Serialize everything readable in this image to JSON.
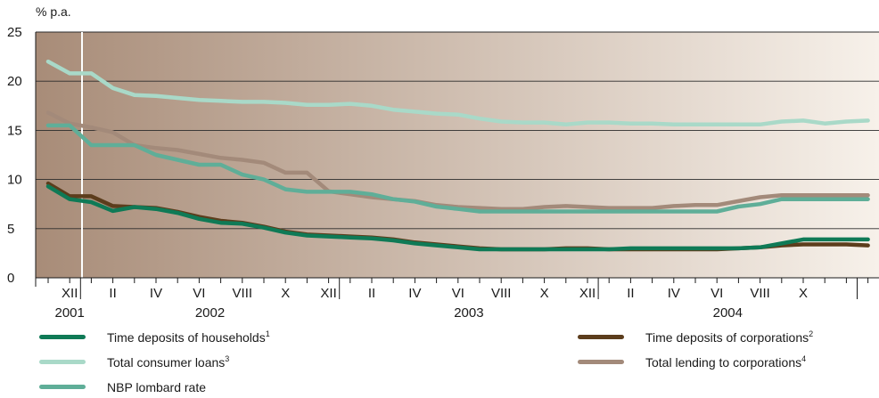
{
  "chart_data": {
    "type": "line",
    "unit_label": "% p.a.",
    "ylim": [
      0,
      25
    ],
    "y_ticks": [
      "0",
      "5",
      "10",
      "15",
      "20",
      "25"
    ],
    "x_month_labels": [
      "XII",
      "II",
      "IV",
      "VI",
      "VIII",
      "X",
      "XII",
      "II",
      "IV",
      "VI",
      "VIII",
      "X",
      "XII",
      "II",
      "IV",
      "VI",
      "VIII",
      "X"
    ],
    "x_year_labels": [
      "2001",
      "2002",
      "2003",
      "2004"
    ],
    "x_range": [
      "2001-11",
      "2004-11"
    ],
    "grid": true,
    "background": {
      "from": "#a88c78",
      "to": "#f7f1ea"
    },
    "series": [
      {
        "name": "Total consumer loans",
        "note": "3",
        "color": "#a9d9c8",
        "values": [
          22.0,
          20.8,
          20.8,
          19.3,
          18.6,
          18.5,
          18.3,
          18.1,
          18.0,
          17.9,
          17.9,
          17.8,
          17.6,
          17.6,
          17.7,
          17.5,
          17.1,
          16.9,
          16.7,
          16.6,
          16.2,
          15.9,
          15.8,
          15.8,
          15.6,
          15.8,
          15.8,
          15.7,
          15.7,
          15.6,
          15.6,
          15.6,
          15.6,
          15.6,
          15.9,
          16.0,
          15.7,
          15.9,
          16.0
        ]
      },
      {
        "name": "Total lending to corporations",
        "note": "4",
        "color": "#a38a7a",
        "values": [
          16.8,
          15.7,
          15.3,
          14.8,
          13.5,
          13.2,
          13.0,
          12.6,
          12.2,
          12.0,
          11.7,
          10.7,
          10.7,
          8.8,
          8.5,
          8.2,
          8.0,
          7.8,
          7.4,
          7.2,
          7.1,
          7.0,
          7.0,
          7.2,
          7.3,
          7.2,
          7.1,
          7.1,
          7.1,
          7.3,
          7.4,
          7.4,
          7.8,
          8.2,
          8.4,
          8.4,
          8.4,
          8.4,
          8.4
        ]
      },
      {
        "name": "NBP lombard rate",
        "note": "",
        "color": "#5fae98",
        "values": [
          15.5,
          15.5,
          13.5,
          13.5,
          13.5,
          12.5,
          12.0,
          11.5,
          11.5,
          10.5,
          10.0,
          9.0,
          8.75,
          8.75,
          8.75,
          8.5,
          8.0,
          7.75,
          7.25,
          7.0,
          6.75,
          6.75,
          6.75,
          6.75,
          6.75,
          6.75,
          6.75,
          6.75,
          6.75,
          6.75,
          6.75,
          6.75,
          7.25,
          7.5,
          8.0,
          8.0,
          8.0,
          8.0,
          8.0
        ]
      },
      {
        "name": "Time deposits of corporations",
        "note": "2",
        "color": "#5c3d1c",
        "values": [
          9.6,
          8.3,
          8.3,
          7.3,
          7.2,
          7.1,
          6.7,
          6.2,
          5.8,
          5.6,
          5.2,
          4.7,
          4.4,
          4.3,
          4.2,
          4.1,
          3.9,
          3.6,
          3.4,
          3.2,
          3.0,
          2.9,
          2.9,
          2.9,
          3.0,
          3.0,
          2.9,
          2.9,
          2.9,
          2.9,
          2.9,
          2.9,
          3.0,
          3.1,
          3.3,
          3.4,
          3.4,
          3.4,
          3.3
        ]
      },
      {
        "name": "Time deposits of households",
        "note": "1",
        "color": "#0f7a56",
        "values": [
          9.3,
          8.0,
          7.7,
          6.8,
          7.2,
          7.0,
          6.6,
          6.0,
          5.6,
          5.5,
          5.1,
          4.6,
          4.3,
          4.2,
          4.1,
          4.0,
          3.8,
          3.5,
          3.3,
          3.1,
          2.9,
          2.9,
          2.9,
          2.9,
          2.9,
          2.9,
          2.9,
          3.0,
          3.0,
          3.0,
          3.0,
          3.0,
          3.0,
          3.1,
          3.5,
          3.9,
          3.9,
          3.9,
          3.9
        ]
      }
    ],
    "legend": [
      {
        "series_index": 4,
        "label": "Time deposits of households",
        "sup": "1"
      },
      {
        "series_index": 0,
        "label": "Total consumer loans",
        "sup": "3"
      },
      {
        "series_index": 2,
        "label": "NBP lombard rate",
        "sup": ""
      },
      {
        "series_index": 3,
        "label": "Time deposits of corporations",
        "sup": "2"
      },
      {
        "series_index": 1,
        "label": "Total lending to corporations",
        "sup": "4"
      }
    ]
  }
}
